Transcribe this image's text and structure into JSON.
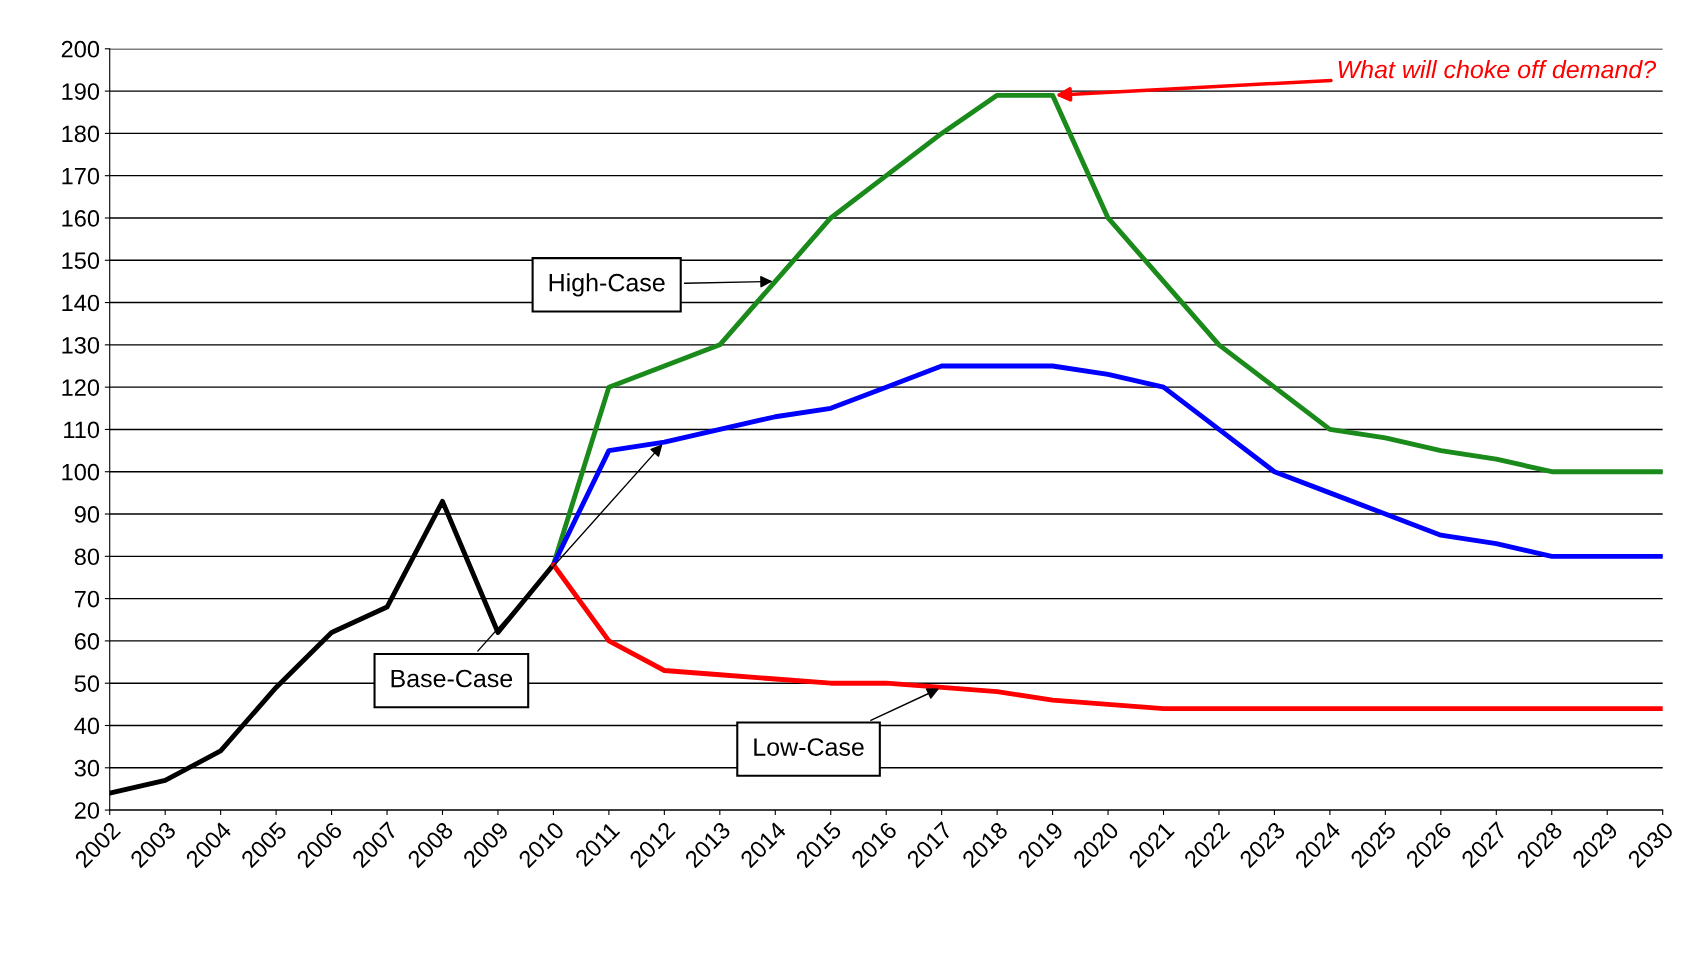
{
  "chart_data": {
    "type": "line",
    "categories": [
      "2002",
      "2003",
      "2004",
      "2005",
      "2006",
      "2007",
      "2008",
      "2009",
      "2010",
      "2011",
      "2012",
      "2013",
      "2014",
      "2015",
      "2016",
      "2017",
      "2018",
      "2019",
      "2020",
      "2021",
      "2022",
      "2023",
      "2024",
      "2025",
      "2026",
      "2027",
      "2028",
      "2029",
      "2030"
    ],
    "series": [
      {
        "color": "#000000",
        "values": [
          24,
          27,
          34,
          49,
          62,
          68,
          93,
          62,
          78,
          null,
          null,
          null,
          null,
          null,
          null,
          null,
          null,
          null,
          null,
          null,
          null,
          null,
          null,
          null,
          null,
          null,
          null,
          null,
          null
        ]
      },
      {
        "name": "High-Case",
        "color": "#1a8a1a",
        "values": [
          null,
          null,
          null,
          null,
          null,
          null,
          null,
          null,
          78,
          120,
          125,
          130,
          145,
          160,
          170,
          180,
          189,
          189,
          160,
          145,
          130,
          120,
          110,
          108,
          105,
          103,
          100,
          100,
          100
        ]
      },
      {
        "name": "Base-Case",
        "color": "#0000ff",
        "values": [
          null,
          null,
          null,
          null,
          null,
          null,
          null,
          null,
          78,
          105,
          107,
          110,
          113,
          115,
          120,
          125,
          125,
          125,
          123,
          120,
          110,
          100,
          95,
          90,
          85,
          83,
          80,
          80,
          80
        ]
      },
      {
        "name": "Low-Case",
        "color": "#ff0000",
        "values": [
          null,
          null,
          null,
          null,
          null,
          null,
          null,
          null,
          78,
          60,
          53,
          52,
          51,
          50,
          50,
          49,
          48,
          46,
          45,
          44,
          44,
          44,
          44,
          44,
          44,
          44,
          44,
          44,
          44
        ]
      }
    ],
    "ylim": [
      20,
      200
    ],
    "yticks": [
      20,
      30,
      40,
      50,
      60,
      70,
      80,
      90,
      100,
      110,
      120,
      130,
      140,
      150,
      160,
      170,
      180,
      190,
      200
    ],
    "grid": "y",
    "legend": false,
    "marker": "none",
    "line_style": "solid",
    "annotations": [
      {
        "text": "What will choke off demand?",
        "x": "2019",
        "y": 189
      }
    ]
  }
}
